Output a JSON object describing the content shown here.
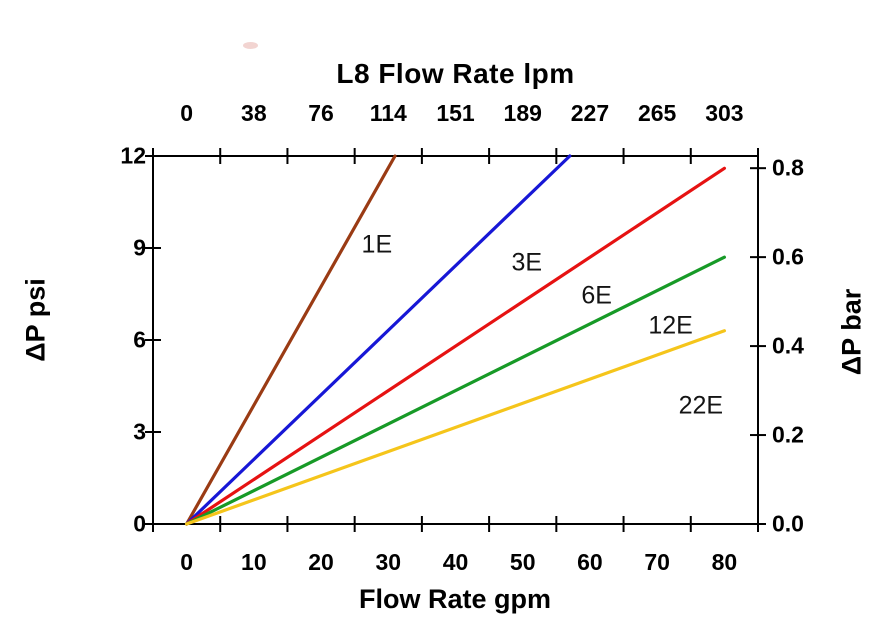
{
  "chart_data": {
    "type": "line",
    "title": "L8 Flow Rate lpm",
    "top_axis": {
      "label": "L8 Flow Rate lpm",
      "ticks": [
        "0",
        "38",
        "76",
        "114",
        "151",
        "189",
        "227",
        "265",
        "303"
      ],
      "units": "lpm"
    },
    "bottom_axis": {
      "label": "Flow Rate gpm",
      "ticks": [
        "0",
        "10",
        "20",
        "30",
        "40",
        "50",
        "60",
        "70",
        "80"
      ],
      "range_gpm": [
        0,
        80
      ],
      "units": "gpm"
    },
    "left_axis": {
      "label": "ΔP psi",
      "ticks": [
        "0",
        "3",
        "6",
        "9",
        "12"
      ],
      "range_psi": [
        0,
        12
      ],
      "units": "psi"
    },
    "right_axis": {
      "label": "ΔP bar",
      "ticks": [
        "0.0",
        "0.2",
        "0.4",
        "0.6",
        "0.8"
      ],
      "range_bar": [
        0,
        0.8
      ],
      "units": "bar"
    },
    "grid": false,
    "legend": "inline-labels",
    "axis_color": "#000000",
    "background": "#ffffff",
    "series": [
      {
        "name": "1E",
        "color": "#9A3B14",
        "points_gpm_psi": [
          [
            0,
            0
          ],
          [
            31,
            12
          ]
        ],
        "label": {
          "text": "1E",
          "gpm": 28.3,
          "psi": 9.1
        }
      },
      {
        "name": "3E",
        "color": "#1717D6",
        "points_gpm_psi": [
          [
            0,
            0
          ],
          [
            57,
            12
          ]
        ],
        "label": {
          "text": "3E",
          "gpm": 50.6,
          "psi": 8.5
        }
      },
      {
        "name": "6E",
        "color": "#E61212",
        "points_gpm_psi": [
          [
            0,
            0
          ],
          [
            80,
            11.6
          ]
        ],
        "label": {
          "text": "6E",
          "gpm": 61.0,
          "psi": 7.45
        }
      },
      {
        "name": "12E",
        "color": "#179A27",
        "points_gpm_psi": [
          [
            0,
            0
          ],
          [
            80,
            8.7
          ]
        ],
        "label": {
          "text": "12E",
          "gpm": 72.0,
          "psi": 6.45
        }
      },
      {
        "name": "22E",
        "color": "#F5C51B",
        "points_gpm_psi": [
          [
            0,
            0
          ],
          [
            80,
            6.3
          ]
        ],
        "label": {
          "text": "22E",
          "gpm": 76.5,
          "psi": 3.85
        }
      }
    ],
    "bar_per_psi": 0.0689476
  },
  "artifacts": {
    "stray_mark_color": "#f0cdc9"
  }
}
